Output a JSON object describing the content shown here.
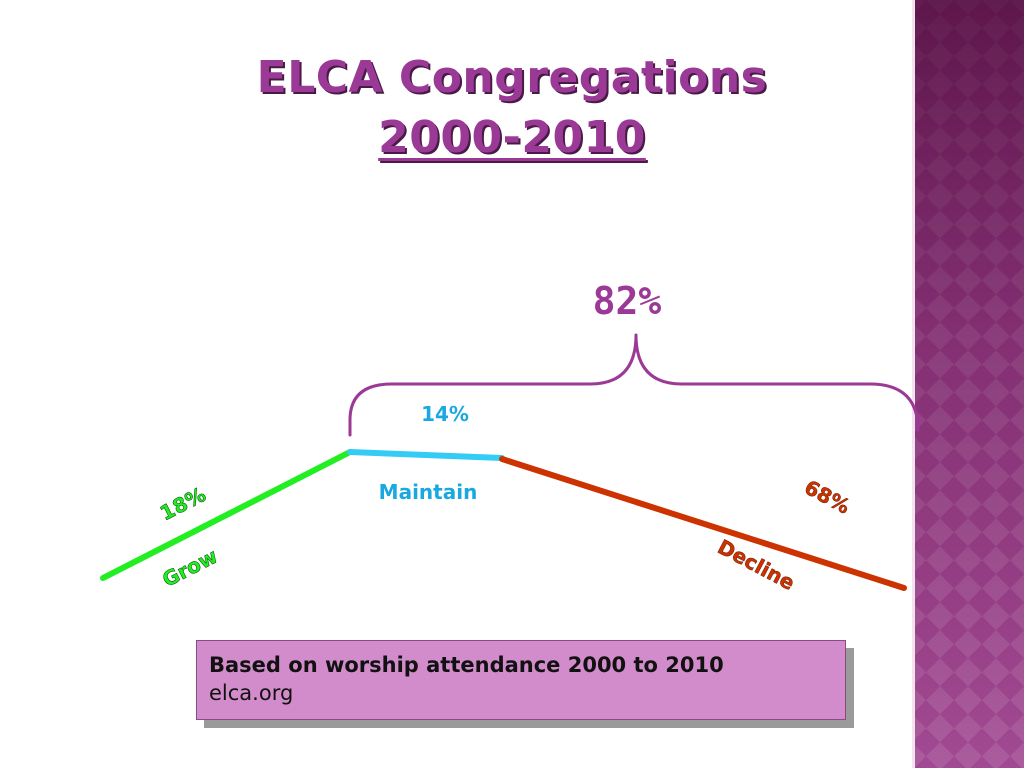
{
  "title": {
    "line1": "ELCA Congregations",
    "line2": "2000-2010"
  },
  "brace": {
    "label": "82%"
  },
  "segments": [
    {
      "name": "grow",
      "percent": "18%",
      "label": "Grow",
      "color": "#22ee22"
    },
    {
      "name": "maintain",
      "percent": "14%",
      "label": "Maintain",
      "color": "#33ccf5"
    },
    {
      "name": "decline",
      "percent": "68%",
      "label": "Decline",
      "color": "#cc3300"
    }
  ],
  "colors": {
    "title": "#9b3a96",
    "brace": "#9b3a96",
    "note_background": "#d38ccb",
    "side_band": "#9c3f8c"
  },
  "note": {
    "line1": "Based on worship attendance 2000 to 2010",
    "line2": "elca.org"
  }
}
